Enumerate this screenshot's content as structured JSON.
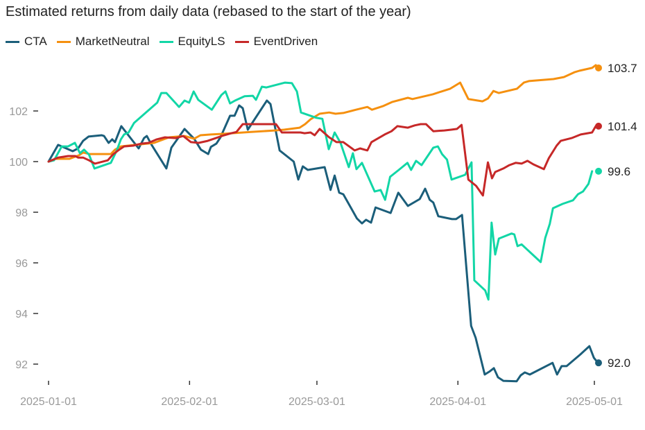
{
  "chart_data": {
    "type": "line",
    "title": "Estimated returns from daily data (rebased to the start of the year)",
    "xlabel": "",
    "ylabel": "",
    "x_start": "2025-01-01",
    "x_unit": "days since 2025-01-01",
    "xlim": [
      0,
      120
    ],
    "ylim": [
      91.4,
      104.0
    ],
    "grid": false,
    "legend_position": "top-left",
    "x_ticks": [
      {
        "day": 0,
        "label": "2025-01-01"
      },
      {
        "day": 31,
        "label": "2025-02-01"
      },
      {
        "day": 59,
        "label": "2025-03-01"
      },
      {
        "day": 90,
        "label": "2025-04-01"
      },
      {
        "day": 120,
        "label": "2025-05-01"
      }
    ],
    "y_ticks": [
      92,
      94,
      96,
      98,
      100,
      102
    ],
    "y_tick_labels": [
      "92",
      "94",
      "96",
      "98",
      "100",
      "102"
    ],
    "series": [
      {
        "name": "CTA",
        "color": "#1b5e7a",
        "end_label": "92.0",
        "points": [
          [
            0,
            100.0
          ],
          [
            2.1,
            100.66
          ],
          [
            5.3,
            100.41
          ],
          [
            6.5,
            100.52
          ],
          [
            7.6,
            100.82
          ],
          [
            8.8,
            100.99
          ],
          [
            11.7,
            101.04
          ],
          [
            12.2,
            101.01
          ],
          [
            13.2,
            100.74
          ],
          [
            14.0,
            100.88
          ],
          [
            14.6,
            100.77
          ],
          [
            16.0,
            101.4
          ],
          [
            19.8,
            100.52
          ],
          [
            21.0,
            100.93
          ],
          [
            21.6,
            101.01
          ],
          [
            22.6,
            100.68
          ],
          [
            25.9,
            99.73
          ],
          [
            27.0,
            100.55
          ],
          [
            29.9,
            101.29
          ],
          [
            32.0,
            100.9
          ],
          [
            33.5,
            100.47
          ],
          [
            35.1,
            100.3
          ],
          [
            35.7,
            100.58
          ],
          [
            36.9,
            100.71
          ],
          [
            37.8,
            100.96
          ],
          [
            39.9,
            101.81
          ],
          [
            40.9,
            101.81
          ],
          [
            41.9,
            102.22
          ],
          [
            42.7,
            102.11
          ],
          [
            43.8,
            101.26
          ],
          [
            48.0,
            102.41
          ],
          [
            48.8,
            102.27
          ],
          [
            50.8,
            100.44
          ],
          [
            53.9,
            100.0
          ],
          [
            54.9,
            99.29
          ],
          [
            55.9,
            99.81
          ],
          [
            57.0,
            99.67
          ],
          [
            60.7,
            99.78
          ],
          [
            62.0,
            98.88
          ],
          [
            62.9,
            99.45
          ],
          [
            63.9,
            98.77
          ],
          [
            64.8,
            98.71
          ],
          [
            67.8,
            97.75
          ],
          [
            68.9,
            97.56
          ],
          [
            69.8,
            97.7
          ],
          [
            70.9,
            97.59
          ],
          [
            71.9,
            98.19
          ],
          [
            75.2,
            97.97
          ],
          [
            76.9,
            98.77
          ],
          [
            79.0,
            98.25
          ],
          [
            81.6,
            98.52
          ],
          [
            82.8,
            98.93
          ],
          [
            83.8,
            98.49
          ],
          [
            84.6,
            98.38
          ],
          [
            85.7,
            97.84
          ],
          [
            88.7,
            97.73
          ],
          [
            89.6,
            97.73
          ],
          [
            90.9,
            97.89
          ],
          [
            92.9,
            93.51
          ],
          [
            93.9,
            93.04
          ],
          [
            95.9,
            91.59
          ],
          [
            96.9,
            91.7
          ],
          [
            97.9,
            91.84
          ],
          [
            98.8,
            91.48
          ],
          [
            100.0,
            91.34
          ],
          [
            102.9,
            91.32
          ],
          [
            103.8,
            91.56
          ],
          [
            104.7,
            91.67
          ],
          [
            105.8,
            91.59
          ],
          [
            110.8,
            92.05
          ],
          [
            111.8,
            91.59
          ],
          [
            112.8,
            91.92
          ],
          [
            113.9,
            91.92
          ],
          [
            116.9,
            92.38
          ],
          [
            118.9,
            92.71
          ],
          [
            119.9,
            92.25
          ],
          [
            120.8,
            92.05
          ]
        ]
      },
      {
        "name": "MarketNeutral",
        "color": "#f5900f",
        "end_label": "103.7",
        "points": [
          [
            0,
            100.0
          ],
          [
            1.5,
            100.11
          ],
          [
            4.6,
            100.11
          ],
          [
            6.7,
            100.25
          ],
          [
            7.6,
            100.36
          ],
          [
            9.0,
            100.3
          ],
          [
            13.7,
            100.3
          ],
          [
            14.6,
            100.47
          ],
          [
            15.9,
            100.6
          ],
          [
            23.2,
            100.74
          ],
          [
            26.5,
            100.96
          ],
          [
            29.9,
            101.01
          ],
          [
            32.0,
            100.9
          ],
          [
            33.4,
            101.04
          ],
          [
            35.7,
            101.07
          ],
          [
            38.6,
            101.1
          ],
          [
            44.5,
            101.17
          ],
          [
            49.7,
            101.23
          ],
          [
            51.8,
            101.26
          ],
          [
            55.2,
            101.34
          ],
          [
            56.4,
            101.48
          ],
          [
            57.6,
            101.67
          ],
          [
            59.6,
            101.89
          ],
          [
            61.7,
            101.94
          ],
          [
            63.1,
            101.89
          ],
          [
            64.8,
            101.92
          ],
          [
            67.6,
            102.05
          ],
          [
            70.1,
            102.16
          ],
          [
            71.1,
            102.05
          ],
          [
            73.5,
            102.19
          ],
          [
            75.6,
            102.36
          ],
          [
            79.0,
            102.52
          ],
          [
            80.0,
            102.47
          ],
          [
            84.5,
            102.66
          ],
          [
            88.3,
            102.88
          ],
          [
            90.5,
            103.12
          ],
          [
            92.3,
            102.47
          ],
          [
            95.4,
            102.38
          ],
          [
            96.6,
            102.49
          ],
          [
            97.8,
            102.79
          ],
          [
            99.0,
            102.71
          ],
          [
            103.0,
            102.88
          ],
          [
            104.5,
            103.12
          ],
          [
            105.6,
            103.18
          ],
          [
            111.0,
            103.26
          ],
          [
            113.3,
            103.34
          ],
          [
            115.6,
            103.53
          ],
          [
            116.7,
            103.59
          ],
          [
            119.5,
            103.7
          ],
          [
            120.3,
            103.81
          ],
          [
            121.1,
            103.7
          ]
        ]
      },
      {
        "name": "EquityLS",
        "color": "#12d6a6",
        "end_label": "99.6",
        "points": [
          [
            0,
            100.0
          ],
          [
            1.2,
            100.05
          ],
          [
            2.9,
            100.6
          ],
          [
            4.3,
            100.6
          ],
          [
            5.8,
            100.74
          ],
          [
            6.9,
            100.33
          ],
          [
            7.8,
            100.47
          ],
          [
            8.9,
            100.27
          ],
          [
            10.1,
            99.73
          ],
          [
            13.7,
            99.95
          ],
          [
            15.0,
            100.44
          ],
          [
            15.9,
            100.88
          ],
          [
            16.6,
            101.07
          ],
          [
            17.6,
            101.15
          ],
          [
            18.8,
            101.53
          ],
          [
            21.1,
            101.89
          ],
          [
            23.9,
            102.33
          ],
          [
            24.8,
            102.71
          ],
          [
            25.9,
            102.71
          ],
          [
            28.7,
            102.16
          ],
          [
            29.9,
            102.41
          ],
          [
            30.9,
            102.33
          ],
          [
            31.9,
            102.77
          ],
          [
            32.9,
            102.44
          ],
          [
            35.9,
            102.05
          ],
          [
            38.0,
            102.63
          ],
          [
            38.9,
            102.77
          ],
          [
            39.9,
            102.3
          ],
          [
            41.0,
            102.41
          ],
          [
            43.1,
            102.58
          ],
          [
            44.9,
            102.6
          ],
          [
            45.6,
            102.44
          ],
          [
            46.9,
            102.96
          ],
          [
            47.9,
            102.93
          ],
          [
            52.0,
            103.12
          ],
          [
            53.5,
            103.1
          ],
          [
            54.6,
            102.77
          ],
          [
            55.5,
            101.94
          ],
          [
            58.9,
            101.73
          ],
          [
            60.2,
            101.69
          ],
          [
            61.6,
            100.49
          ],
          [
            62.9,
            101.15
          ],
          [
            64.2,
            100.74
          ],
          [
            66.0,
            99.78
          ],
          [
            66.9,
            100.33
          ],
          [
            67.7,
            99.7
          ],
          [
            68.9,
            99.95
          ],
          [
            71.7,
            98.82
          ],
          [
            73.0,
            98.88
          ],
          [
            74.0,
            98.49
          ],
          [
            75.1,
            99.4
          ],
          [
            77.0,
            99.67
          ],
          [
            78.9,
            99.95
          ],
          [
            79.7,
            99.67
          ],
          [
            80.8,
            100.03
          ],
          [
            82.0,
            99.86
          ],
          [
            84.6,
            100.55
          ],
          [
            85.6,
            100.6
          ],
          [
            86.5,
            100.3
          ],
          [
            87.6,
            100.08
          ],
          [
            88.6,
            99.29
          ],
          [
            91.6,
            99.48
          ],
          [
            93.0,
            99.97
          ],
          [
            93.6,
            95.31
          ],
          [
            96.0,
            94.91
          ],
          [
            96.7,
            94.55
          ],
          [
            97.4,
            97.59
          ],
          [
            98.2,
            96.33
          ],
          [
            99.0,
            96.96
          ],
          [
            101.8,
            97.16
          ],
          [
            102.4,
            97.12
          ],
          [
            103.1,
            96.66
          ],
          [
            104.0,
            96.73
          ],
          [
            108.2,
            96.03
          ],
          [
            109.2,
            96.99
          ],
          [
            110.2,
            97.54
          ],
          [
            110.9,
            98.16
          ],
          [
            113.0,
            98.33
          ],
          [
            115.3,
            98.47
          ],
          [
            116.4,
            98.71
          ],
          [
            117.5,
            98.82
          ],
          [
            118.7,
            99.12
          ],
          [
            119.5,
            99.62
          ]
        ]
      },
      {
        "name": "EventDriven",
        "color": "#c62828",
        "end_label": "101.4",
        "points": [
          [
            0,
            100.0
          ],
          [
            2.1,
            100.16
          ],
          [
            4.3,
            100.22
          ],
          [
            5.9,
            100.22
          ],
          [
            6.5,
            100.16
          ],
          [
            7.6,
            100.16
          ],
          [
            8.9,
            100.05
          ],
          [
            10.2,
            99.92
          ],
          [
            13.0,
            100.05
          ],
          [
            14.1,
            100.27
          ],
          [
            15.3,
            100.44
          ],
          [
            16.6,
            100.6
          ],
          [
            18.6,
            100.63
          ],
          [
            20.4,
            100.71
          ],
          [
            22.0,
            100.74
          ],
          [
            23.8,
            100.88
          ],
          [
            25.6,
            100.96
          ],
          [
            28.0,
            100.93
          ],
          [
            29.6,
            101.01
          ],
          [
            31.3,
            100.77
          ],
          [
            33.0,
            100.74
          ],
          [
            35.0,
            100.82
          ],
          [
            36.8,
            100.93
          ],
          [
            38.6,
            101.04
          ],
          [
            40.2,
            101.12
          ],
          [
            41.3,
            101.17
          ],
          [
            42.7,
            101.48
          ],
          [
            47.6,
            101.48
          ],
          [
            50.0,
            101.48
          ],
          [
            51.3,
            101.15
          ],
          [
            53.5,
            101.15
          ],
          [
            55.4,
            101.15
          ],
          [
            56.3,
            101.12
          ],
          [
            57.6,
            101.15
          ],
          [
            58.5,
            101.04
          ],
          [
            59.6,
            101.29
          ],
          [
            61.7,
            100.96
          ],
          [
            63.3,
            100.77
          ],
          [
            64.8,
            100.77
          ],
          [
            67.3,
            100.44
          ],
          [
            68.5,
            100.52
          ],
          [
            70.1,
            100.44
          ],
          [
            71.0,
            100.77
          ],
          [
            73.9,
            101.07
          ],
          [
            75.4,
            101.2
          ],
          [
            76.7,
            101.4
          ],
          [
            79.0,
            101.34
          ],
          [
            80.5,
            101.43
          ],
          [
            81.8,
            101.48
          ],
          [
            83.0,
            101.48
          ],
          [
            84.6,
            101.2
          ],
          [
            87.0,
            101.23
          ],
          [
            88.5,
            101.26
          ],
          [
            89.8,
            101.29
          ],
          [
            90.8,
            101.45
          ],
          [
            92.3,
            99.29
          ],
          [
            94.0,
            99.04
          ],
          [
            95.5,
            98.66
          ],
          [
            96.6,
            99.97
          ],
          [
            97.5,
            99.34
          ],
          [
            98.2,
            99.59
          ],
          [
            100.0,
            99.73
          ],
          [
            101.3,
            99.86
          ],
          [
            102.7,
            99.95
          ],
          [
            104.0,
            99.92
          ],
          [
            105.3,
            100.03
          ],
          [
            106.6,
            99.89
          ],
          [
            108.9,
            99.7
          ],
          [
            110.0,
            100.14
          ],
          [
            111.7,
            100.63
          ],
          [
            112.6,
            100.82
          ],
          [
            115.0,
            100.93
          ],
          [
            117.0,
            101.07
          ],
          [
            119.5,
            101.15
          ],
          [
            120.3,
            101.4
          ]
        ]
      }
    ]
  }
}
